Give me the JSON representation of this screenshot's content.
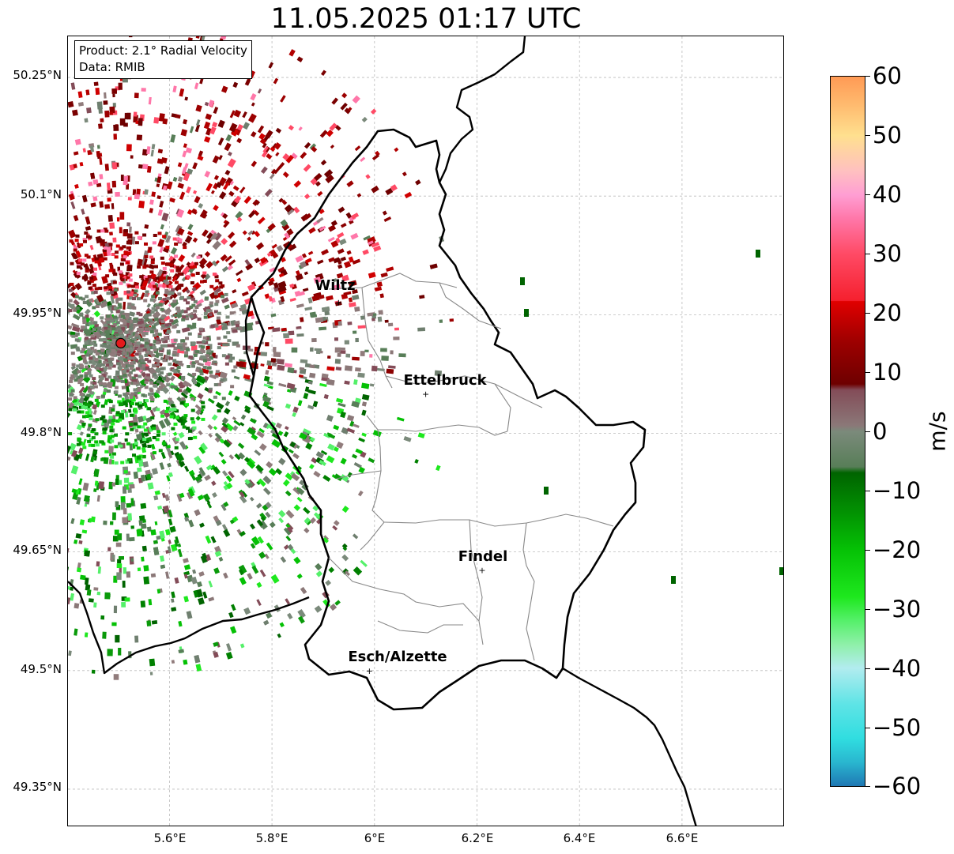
{
  "title": "11.05.2025 01:17 UTC",
  "info_box": {
    "product": "Product: 2.1° Radial Velocity",
    "data": "Data: RMIB"
  },
  "lat_labels": [
    "50.25°N",
    "50.1°N",
    "49.95°N",
    "49.8°N",
    "49.65°N",
    "49.5°N",
    "49.35°N"
  ],
  "lon_labels": [
    "5.6°E",
    "5.8°E",
    "6°E",
    "6.2°E",
    "6.4°E",
    "6.6°E"
  ],
  "cities": [
    {
      "name": "Wiltz",
      "lon": 5.93,
      "lat": 49.966
    },
    {
      "name": "Ettelbruck",
      "lon": 6.1,
      "lat": 49.85
    },
    {
      "name": "Findel",
      "lon": 6.21,
      "lat": 49.627
    },
    {
      "name": "Esch/Alzette",
      "lon": 5.99,
      "lat": 49.5
    }
  ],
  "radar_site": {
    "lon": 5.505,
    "lat": 49.914,
    "color": "#e41a1c"
  },
  "colorbar": {
    "unit": "m/s",
    "min": -60,
    "max": 60,
    "ticks": [
      "60",
      "50",
      "40",
      "30",
      "20",
      "10",
      "0",
      "−10",
      "−20",
      "−30",
      "−40",
      "−50",
      "−60"
    ],
    "stops": [
      {
        "v": -60,
        "color": "#1f78b4"
      },
      {
        "v": -56,
        "color": "#29b6cf"
      },
      {
        "v": -52,
        "color": "#30dde0"
      },
      {
        "v": -46,
        "color": "#60e4e6"
      },
      {
        "v": -40,
        "color": "#b2ecef"
      },
      {
        "v": -36,
        "color": "#8ef0a8"
      },
      {
        "v": -32,
        "color": "#55f06a"
      },
      {
        "v": -28,
        "color": "#1ee81e"
      },
      {
        "v": -20,
        "color": "#05c105"
      },
      {
        "v": -14,
        "color": "#029402"
      },
      {
        "v": -7,
        "color": "#006400"
      },
      {
        "v": -6,
        "color": "#587e58"
      },
      {
        "v": 0,
        "color": "#7b8a7b"
      },
      {
        "v": 1,
        "color": "#8b7878"
      },
      {
        "v": 7,
        "color": "#834c58"
      },
      {
        "v": 8,
        "color": "#6e0000"
      },
      {
        "v": 15,
        "color": "#9c0000"
      },
      {
        "v": 22,
        "color": "#e00000"
      },
      {
        "v": 22.1,
        "color": "#f5202e"
      },
      {
        "v": 30,
        "color": "#ff4a65"
      },
      {
        "v": 36,
        "color": "#ff77a9"
      },
      {
        "v": 40,
        "color": "#ff9ed3"
      },
      {
        "v": 44,
        "color": "#ffc0c0"
      },
      {
        "v": 50,
        "color": "#ffe08f"
      },
      {
        "v": 55,
        "color": "#ffbc70"
      },
      {
        "v": 60,
        "color": "#ff9a55"
      }
    ]
  }
}
